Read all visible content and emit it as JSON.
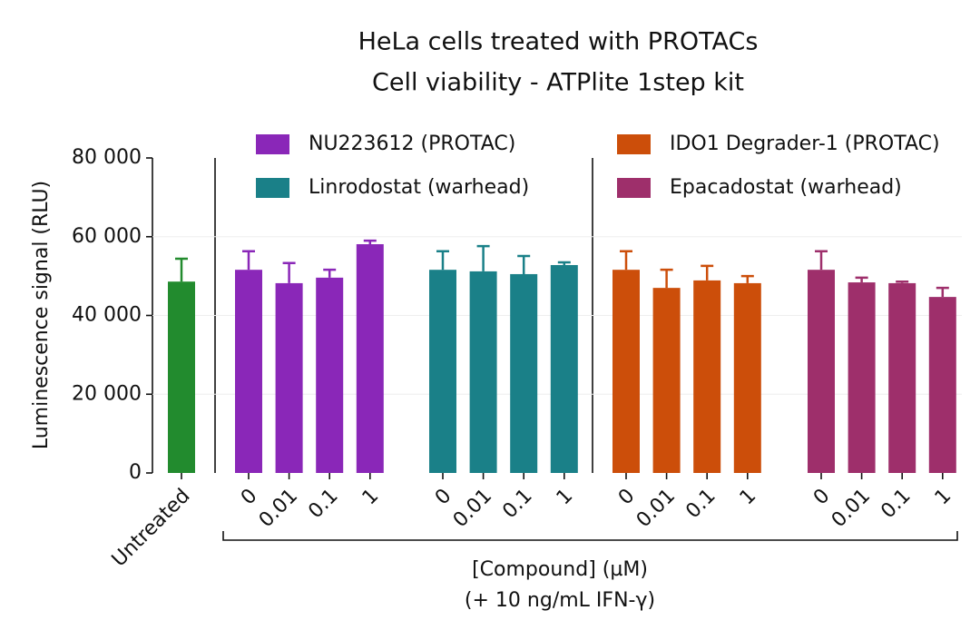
{
  "chart_data": {
    "type": "bar",
    "title": [
      "HeLa cells treated with PROTACs",
      "Cell viability - ATPlite 1step kit"
    ],
    "y_label": "Luminescence signal (RLU)",
    "x_label": [
      "[Compound] (µM)",
      "(+ 10 ng/mL IFN-γ)"
    ],
    "categories": [
      "Untreated",
      "0",
      "0.01",
      "0.1",
      "1",
      "0",
      "0.01",
      "0.1",
      "1",
      "0",
      "0.01",
      "0.1",
      "1",
      "0",
      "0.01",
      "0.1",
      "1"
    ],
    "series": [
      {
        "color": "#228b2e",
        "values": [
          48600,
          null,
          null,
          null,
          null,
          null,
          null,
          null,
          null,
          null,
          null,
          null,
          null,
          null,
          null,
          null,
          null
        ],
        "errors": [
          5800,
          null,
          null,
          null,
          null,
          null,
          null,
          null,
          null,
          null,
          null,
          null,
          null,
          null,
          null,
          null,
          null
        ]
      },
      {
        "name": "NU223612 (PROTAC)",
        "color": "#8a27b8",
        "values": [
          null,
          51600,
          48200,
          49600,
          58100,
          null,
          null,
          null,
          null,
          null,
          null,
          null,
          null,
          null,
          null,
          null,
          null
        ],
        "errors": [
          null,
          4700,
          5100,
          2000,
          900,
          null,
          null,
          null,
          null,
          null,
          null,
          null,
          null,
          null,
          null,
          null,
          null
        ]
      },
      {
        "name": "Linrodostat (warhead)",
        "color": "#1a8088",
        "values": [
          null,
          null,
          null,
          null,
          null,
          51600,
          51200,
          50500,
          52800,
          null,
          null,
          null,
          null,
          null,
          null,
          null,
          null
        ],
        "errors": [
          null,
          null,
          null,
          null,
          null,
          4700,
          6400,
          4600,
          700,
          null,
          null,
          null,
          null,
          null,
          null,
          null,
          null
        ]
      },
      {
        "name": "IDO1 Degrader-1 (PROTAC)",
        "color": "#cc4e0a",
        "values": [
          null,
          null,
          null,
          null,
          null,
          null,
          null,
          null,
          null,
          51600,
          47000,
          48900,
          48200,
          null,
          null,
          null,
          null
        ],
        "errors": [
          null,
          null,
          null,
          null,
          null,
          null,
          null,
          null,
          null,
          4700,
          4600,
          3700,
          1800,
          null,
          null,
          null,
          null
        ]
      },
      {
        "name": "Epacadostat (warhead)",
        "color": "#9e2f6b",
        "values": [
          null,
          null,
          null,
          null,
          null,
          null,
          null,
          null,
          null,
          null,
          null,
          null,
          null,
          51600,
          48400,
          48200,
          44700
        ],
        "errors": [
          null,
          null,
          null,
          null,
          null,
          null,
          null,
          null,
          null,
          null,
          null,
          null,
          null,
          4700,
          1200,
          400,
          2300
        ]
      }
    ],
    "ylim": [
      0,
      80000
    ],
    "yticks": [
      {
        "value": 0,
        "label": "0"
      },
      {
        "value": 20000,
        "label": "20 000"
      },
      {
        "value": 40000,
        "label": "40 000"
      },
      {
        "value": 60000,
        "label": "60 000"
      },
      {
        "value": 80000,
        "label": "80 000"
      }
    ],
    "grid": true
  }
}
